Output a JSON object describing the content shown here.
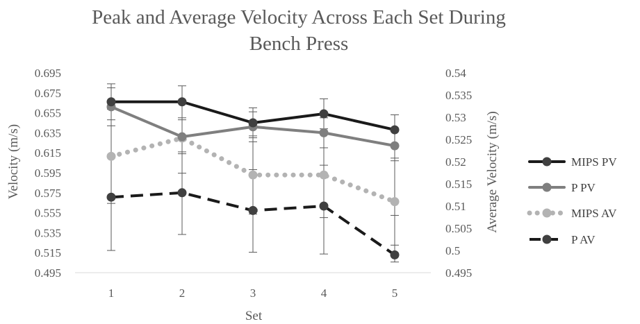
{
  "chart_data": {
    "type": "line",
    "title_lines": [
      "Peak and Average Velocity Across Each Set During",
      "Bench Press"
    ],
    "xlabel": "Set",
    "ylabel": "Velocity (m/s)",
    "y2label": "Average Velocity (m/s)",
    "categories": [
      "1",
      "2",
      "3",
      "4",
      "5"
    ],
    "y_ticks": [
      "0.695",
      "0.675",
      "0.655",
      "0.635",
      "0.615",
      "0.595",
      "0.575",
      "0.555",
      "0.535",
      "0.515",
      "0.495"
    ],
    "y2_ticks": [
      "0.54",
      "0.535",
      "0.53",
      "0.525",
      "0.52",
      "0.515",
      "0.51",
      "0.505",
      "0.5",
      "0.495"
    ],
    "ylim": [
      0.495,
      0.695
    ],
    "y2lim": [
      0.495,
      0.54
    ],
    "grid": false,
    "legend_position": "right",
    "series": [
      {
        "name": "MIPS PV",
        "axis": "left",
        "values": [
          0.666,
          0.666,
          0.645,
          0.654,
          0.638
        ],
        "err_high": [
          0.684,
          0.682,
          0.66,
          0.669,
          0.653
        ],
        "err_low": [
          0.648,
          0.65,
          0.63,
          0.639,
          0.623
        ],
        "color": "#1a1a1a",
        "dash": "solid"
      },
      {
        "name": "P PV",
        "axis": "left",
        "values": [
          0.661,
          0.631,
          0.641,
          0.635,
          0.622
        ],
        "err_high": [
          0.68,
          0.648,
          0.656,
          0.65,
          0.637
        ],
        "err_low": [
          0.642,
          0.614,
          0.626,
          0.62,
          0.607
        ],
        "color": "#7f7f7f",
        "dash": "solid"
      },
      {
        "name": "MIPS AV",
        "axis": "right",
        "values": [
          0.5212,
          0.5253,
          0.517,
          0.517,
          0.511
        ],
        "err_high": [
          0.5318,
          0.5332,
          0.5258,
          0.5266,
          0.5208
        ],
        "err_low": [
          0.5106,
          0.5174,
          0.5082,
          0.5074,
          0.5012
        ],
        "color": "#b3b3b3",
        "dash": "dot"
      },
      {
        "name": "P AV",
        "axis": "right",
        "values": [
          0.512,
          0.513,
          0.509,
          0.51,
          0.499
        ],
        "err_high": [
          0.5212,
          0.5222,
          0.5182,
          0.5192,
          0.5079
        ],
        "err_low": [
          0.5,
          0.5036,
          0.4996,
          0.4992,
          0.4974
        ],
        "color": "#1a1a1a",
        "dash": "dash"
      }
    ]
  }
}
